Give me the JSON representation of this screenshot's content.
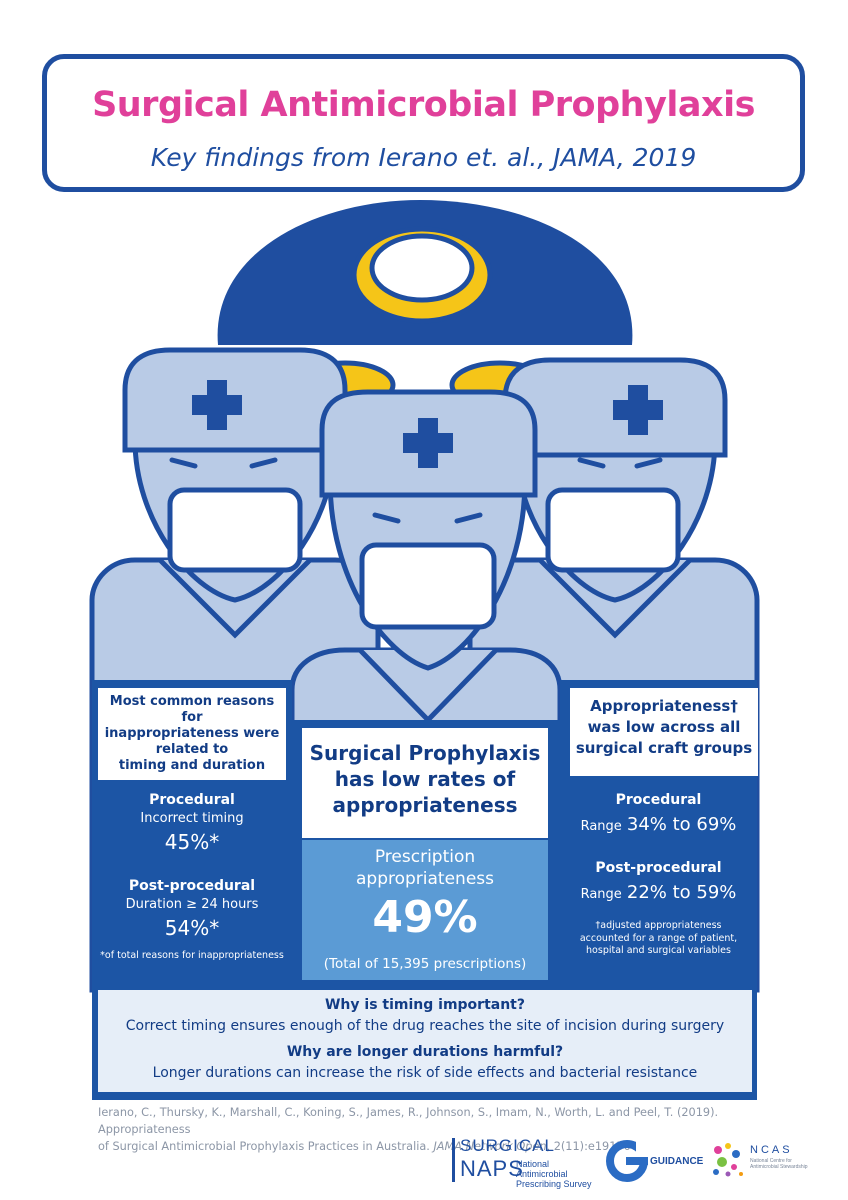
{
  "header": {
    "title": "Surgical Antimicrobial Prophylaxis",
    "subtitle": "Key findings from Ierano et. al., JAMA, 2019"
  },
  "left_panel": {
    "heading_lines": [
      "Most common reasons for",
      "inappropriateness were",
      "related to",
      "timing and duration"
    ],
    "procedural_label": "Procedural",
    "procedural_desc": "Incorrect timing",
    "procedural_value": "45%*",
    "post_label": "Post-procedural",
    "post_desc": "Duration ≥ 24 hours",
    "post_value": "54%*",
    "footnote": "*of total reasons for inappropriateness"
  },
  "center_panel": {
    "heading_lines": [
      "Surgical Prophylaxis",
      "has low rates of",
      "appropriateness"
    ],
    "metric_label_lines": [
      "Prescription",
      "appropriateness"
    ],
    "metric_value": "49%",
    "metric_note": "(Total of 15,395 prescriptions)"
  },
  "right_panel": {
    "heading_lines": [
      "Appropriateness†",
      "was low across all",
      "surgical craft groups"
    ],
    "procedural_label": "Procedural",
    "procedural_range_prefix": "Range",
    "procedural_range": "34% to 69%",
    "post_label": "Post-procedural",
    "post_range_prefix": "Range",
    "post_range": "22% to 59%",
    "footnote_lines": [
      "†adjusted appropriateness",
      "accounted for a range of patient,",
      "hospital and surgical variables"
    ]
  },
  "info_box": {
    "q1": "Why is timing important?",
    "a1": "Correct timing ensures enough of the drug reaches the site of incision during surgery",
    "q2": "Why are longer durations harmful?",
    "a2": "Longer durations can increase the risk of side effects and bacterial resistance"
  },
  "citation": {
    "line1": "Ierano, C., Thursky, K., Marshall, C., Koning, S., James, R., Johnson, S., Imam, N., Worth, L. and Peel, T. (2019). Appropriateness",
    "line2_start": "of Surgical Antimicrobial Prophylaxis Practices in Australia.",
    "journal": "JAMA Network Open",
    "line2_end": ", 2(11):e1915003."
  },
  "logos": {
    "naps_top": "SURGICAL",
    "naps_bottom": "NAPS",
    "naps_sub_lines": [
      "National Antimicrobial",
      "Prescribing Survey"
    ],
    "guidance": "GUIDANCE",
    "ncas": "NCAS",
    "ncas_sub_lines": [
      "National Centre for",
      "Antimicrobial Stewardship"
    ]
  },
  "colors": {
    "title_pink": "#e0409a",
    "navy": "#1f4ea0",
    "panel_blue": "#1c55a5",
    "center_blue": "#5b9bd5",
    "light_blue": "#b9cbe6",
    "lamp_yellow": "#f5c518"
  }
}
